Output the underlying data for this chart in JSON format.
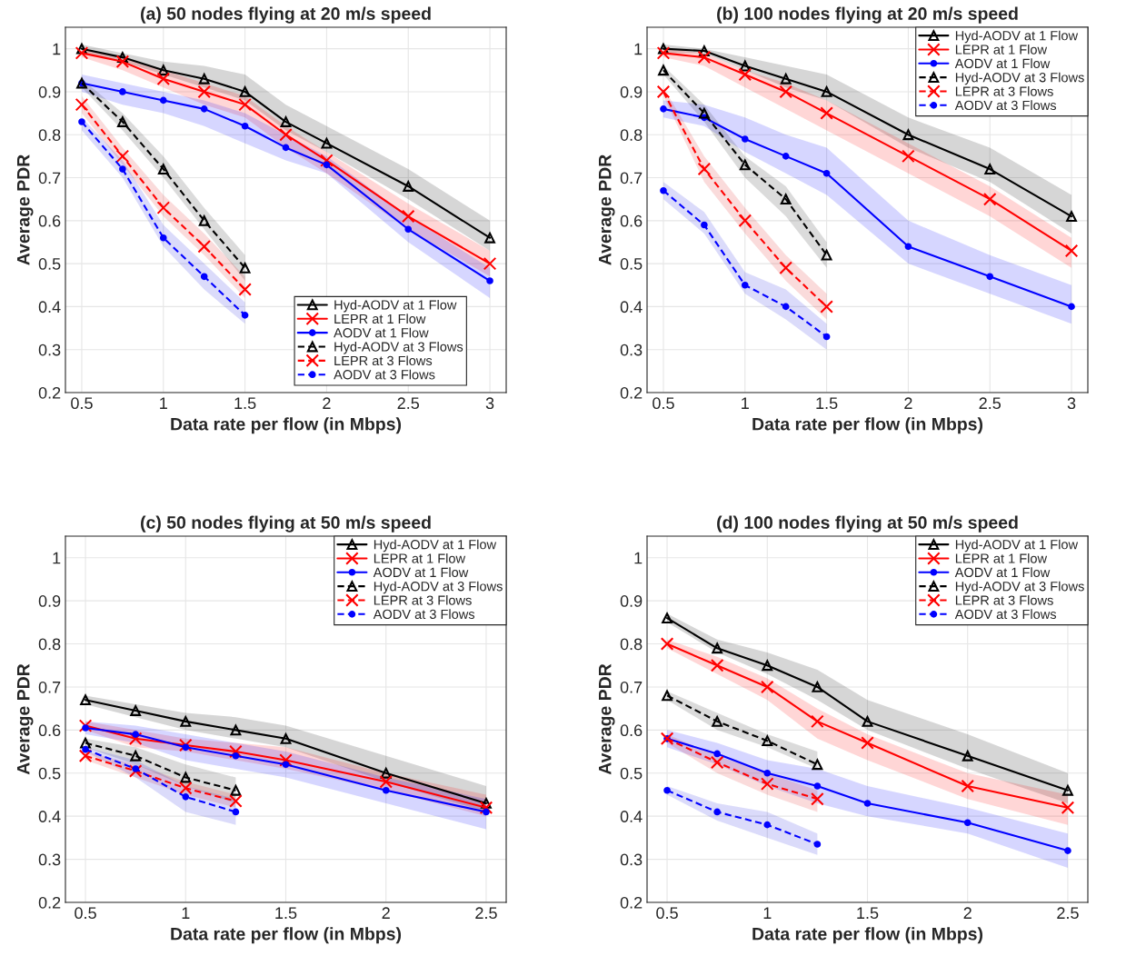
{
  "chart_data": [
    {
      "type": "line",
      "title": "(a) 50 nodes flying at 20 m/s speed",
      "xlabel": "Data rate per flow (in Mbps)",
      "ylabel": "Average PDR",
      "xlim": [
        0.4,
        3.1
      ],
      "ylim": [
        0.2,
        1.05
      ],
      "xticks": [
        0.5,
        1,
        1.5,
        2,
        2.5,
        3
      ],
      "yticks": [
        0.2,
        0.3,
        0.4,
        0.5,
        0.6,
        0.7,
        0.8,
        0.9,
        1
      ],
      "grid": true,
      "legend": "bottom right",
      "series": [
        {
          "name": "Hyd-AODV at 1 Flow",
          "color": "#000000",
          "marker": "triangle",
          "line_style": "solid",
          "x": [
            0.5,
            0.75,
            1,
            1.25,
            1.5,
            1.75,
            2,
            2.5,
            3
          ],
          "values": [
            1.0,
            0.98,
            0.95,
            0.93,
            0.9,
            0.83,
            0.78,
            0.68,
            0.56
          ],
          "upper": [
            1.01,
            0.99,
            0.97,
            0.96,
            0.94,
            0.87,
            0.82,
            0.72,
            0.6
          ],
          "lower": [
            0.99,
            0.97,
            0.94,
            0.91,
            0.88,
            0.81,
            0.76,
            0.65,
            0.53
          ]
        },
        {
          "name": "LEPR at 1 Flow",
          "color": "#ff0000",
          "marker": "cross",
          "line_style": "solid",
          "x": [
            0.5,
            0.75,
            1,
            1.25,
            1.5,
            1.75,
            2,
            2.5,
            3
          ],
          "values": [
            0.99,
            0.97,
            0.93,
            0.9,
            0.87,
            0.8,
            0.74,
            0.61,
            0.5
          ],
          "upper": [
            1.0,
            0.98,
            0.95,
            0.92,
            0.89,
            0.82,
            0.76,
            0.64,
            0.53
          ],
          "lower": [
            0.98,
            0.95,
            0.91,
            0.87,
            0.84,
            0.77,
            0.71,
            0.58,
            0.47
          ]
        },
        {
          "name": "AODV at 1 Flow",
          "color": "#0000ff",
          "marker": "circle",
          "line_style": "solid",
          "x": [
            0.5,
            0.75,
            1,
            1.25,
            1.5,
            1.75,
            2,
            2.5,
            3
          ],
          "values": [
            0.92,
            0.9,
            0.88,
            0.86,
            0.82,
            0.77,
            0.73,
            0.58,
            0.46
          ],
          "upper": [
            0.94,
            0.92,
            0.9,
            0.88,
            0.85,
            0.8,
            0.75,
            0.61,
            0.49
          ],
          "lower": [
            0.9,
            0.87,
            0.85,
            0.82,
            0.78,
            0.74,
            0.71,
            0.55,
            0.42
          ]
        },
        {
          "name": "Hyd-AODV at 3 Flows",
          "color": "#000000",
          "marker": "triangle",
          "line_style": "dashed",
          "x": [
            0.5,
            0.75,
            1,
            1.25,
            1.5
          ],
          "values": [
            0.92,
            0.83,
            0.72,
            0.6,
            0.49
          ],
          "upper": [
            0.93,
            0.85,
            0.75,
            0.63,
            0.52
          ],
          "lower": [
            0.91,
            0.81,
            0.7,
            0.58,
            0.46
          ]
        },
        {
          "name": "LEPR at 3 Flows",
          "color": "#ff0000",
          "marker": "cross",
          "line_style": "dashed",
          "x": [
            0.5,
            0.75,
            1,
            1.25,
            1.5
          ],
          "values": [
            0.87,
            0.75,
            0.63,
            0.54,
            0.44
          ],
          "upper": [
            0.89,
            0.77,
            0.66,
            0.57,
            0.47
          ],
          "lower": [
            0.85,
            0.73,
            0.61,
            0.52,
            0.42
          ]
        },
        {
          "name": "AODV at 3 Flows",
          "color": "#0000ff",
          "marker": "circle",
          "line_style": "dashed",
          "x": [
            0.5,
            0.75,
            1,
            1.25,
            1.5
          ],
          "values": [
            0.83,
            0.72,
            0.56,
            0.47,
            0.38
          ],
          "upper": [
            0.84,
            0.74,
            0.59,
            0.5,
            0.41
          ],
          "lower": [
            0.81,
            0.7,
            0.54,
            0.44,
            0.36
          ]
        }
      ]
    },
    {
      "type": "line",
      "title": "(b) 100 nodes flying at 20 m/s speed",
      "xlabel": "Data rate per flow (in Mbps)",
      "ylabel": "Average PDR",
      "xlim": [
        0.4,
        3.1
      ],
      "ylim": [
        0.2,
        1.05
      ],
      "xticks": [
        0.5,
        1,
        1.5,
        2,
        2.5,
        3
      ],
      "yticks": [
        0.2,
        0.3,
        0.4,
        0.5,
        0.6,
        0.7,
        0.8,
        0.9,
        1
      ],
      "grid": true,
      "legend": "top right",
      "series": [
        {
          "name": "Hyd-AODV at 1 Flow",
          "color": "#000000",
          "marker": "triangle",
          "line_style": "solid",
          "x": [
            0.5,
            0.75,
            1,
            1.25,
            1.5,
            2,
            2.5,
            3
          ],
          "values": [
            1.0,
            0.995,
            0.96,
            0.93,
            0.9,
            0.8,
            0.72,
            0.61
          ],
          "upper": [
            1.01,
            1.0,
            0.98,
            0.96,
            0.94,
            0.84,
            0.77,
            0.66
          ],
          "lower": [
            0.99,
            0.99,
            0.95,
            0.91,
            0.88,
            0.77,
            0.69,
            0.57
          ]
        },
        {
          "name": "LEPR at 1 Flow",
          "color": "#ff0000",
          "marker": "cross",
          "line_style": "solid",
          "x": [
            0.5,
            0.75,
            1,
            1.25,
            1.5,
            2,
            2.5,
            3
          ],
          "values": [
            0.99,
            0.98,
            0.94,
            0.9,
            0.85,
            0.75,
            0.65,
            0.53
          ],
          "upper": [
            1.0,
            0.99,
            0.95,
            0.92,
            0.88,
            0.78,
            0.68,
            0.56
          ],
          "lower": [
            0.98,
            0.96,
            0.91,
            0.86,
            0.81,
            0.71,
            0.61,
            0.49
          ]
        },
        {
          "name": "AODV at 1 Flow",
          "color": "#0000ff",
          "marker": "circle",
          "line_style": "solid",
          "x": [
            0.5,
            0.75,
            1,
            1.25,
            1.5,
            2,
            2.5,
            3
          ],
          "values": [
            0.86,
            0.84,
            0.79,
            0.75,
            0.71,
            0.54,
            0.47,
            0.4
          ],
          "upper": [
            0.88,
            0.87,
            0.84,
            0.8,
            0.77,
            0.6,
            0.52,
            0.45
          ],
          "lower": [
            0.84,
            0.82,
            0.76,
            0.71,
            0.66,
            0.5,
            0.43,
            0.36
          ]
        },
        {
          "name": "Hyd-AODV at 3 Flows",
          "color": "#000000",
          "marker": "triangle",
          "line_style": "dashed",
          "x": [
            0.5,
            0.75,
            1,
            1.25,
            1.5
          ],
          "values": [
            0.95,
            0.85,
            0.73,
            0.65,
            0.52
          ],
          "upper": [
            0.96,
            0.87,
            0.75,
            0.68,
            0.55
          ],
          "lower": [
            0.94,
            0.83,
            0.7,
            0.61,
            0.49
          ]
        },
        {
          "name": "LEPR at 3 Flows",
          "color": "#ff0000",
          "marker": "cross",
          "line_style": "dashed",
          "x": [
            0.5,
            0.75,
            1,
            1.25,
            1.5
          ],
          "values": [
            0.9,
            0.72,
            0.6,
            0.49,
            0.4
          ],
          "upper": [
            0.91,
            0.75,
            0.63,
            0.52,
            0.43
          ],
          "lower": [
            0.89,
            0.69,
            0.57,
            0.46,
            0.37
          ]
        },
        {
          "name": "AODV at 3 Flows",
          "color": "#0000ff",
          "marker": "circle",
          "line_style": "dashed",
          "x": [
            0.5,
            0.75,
            1,
            1.25,
            1.5
          ],
          "values": [
            0.67,
            0.59,
            0.45,
            0.4,
            0.33
          ],
          "upper": [
            0.69,
            0.62,
            0.48,
            0.44,
            0.36
          ],
          "lower": [
            0.65,
            0.57,
            0.43,
            0.37,
            0.3
          ]
        }
      ]
    },
    {
      "type": "line",
      "title": "(c) 50 nodes flying at 50 m/s speed",
      "xlabel": "Data rate per flow (in Mbps)",
      "ylabel": "Average PDR",
      "xlim": [
        0.4,
        2.6
      ],
      "ylim": [
        0.2,
        1.05
      ],
      "xticks": [
        0.5,
        1,
        1.5,
        2,
        2.5
      ],
      "yticks": [
        0.2,
        0.3,
        0.4,
        0.5,
        0.6,
        0.7,
        0.8,
        0.9,
        1
      ],
      "grid": true,
      "legend": "top right",
      "series": [
        {
          "name": "Hyd-AODV at 1 Flow",
          "color": "#000000",
          "marker": "triangle",
          "line_style": "solid",
          "x": [
            0.5,
            0.75,
            1,
            1.25,
            1.5,
            2,
            2.5
          ],
          "values": [
            0.67,
            0.645,
            0.62,
            0.6,
            0.58,
            0.5,
            0.43
          ],
          "upper": [
            0.68,
            0.66,
            0.64,
            0.63,
            0.61,
            0.54,
            0.47
          ],
          "lower": [
            0.66,
            0.63,
            0.6,
            0.58,
            0.56,
            0.48,
            0.41
          ]
        },
        {
          "name": "LEPR at 1 Flow",
          "color": "#ff0000",
          "marker": "cross",
          "line_style": "solid",
          "x": [
            0.5,
            0.75,
            1,
            1.25,
            1.5,
            2,
            2.5
          ],
          "values": [
            0.61,
            0.58,
            0.565,
            0.55,
            0.53,
            0.48,
            0.42
          ],
          "upper": [
            0.62,
            0.6,
            0.58,
            0.57,
            0.56,
            0.5,
            0.45
          ],
          "lower": [
            0.6,
            0.56,
            0.55,
            0.53,
            0.51,
            0.46,
            0.4
          ]
        },
        {
          "name": "AODV at 1 Flow",
          "color": "#0000ff",
          "marker": "circle",
          "line_style": "solid",
          "x": [
            0.5,
            0.75,
            1,
            1.25,
            1.5,
            2,
            2.5
          ],
          "values": [
            0.605,
            0.59,
            0.56,
            0.54,
            0.52,
            0.46,
            0.41
          ],
          "upper": [
            0.62,
            0.61,
            0.59,
            0.57,
            0.55,
            0.49,
            0.44
          ],
          "lower": [
            0.59,
            0.57,
            0.53,
            0.51,
            0.49,
            0.43,
            0.37
          ]
        },
        {
          "name": "Hyd-AODV at 3 Flows",
          "color": "#000000",
          "marker": "triangle",
          "line_style": "dashed",
          "x": [
            0.5,
            0.75,
            1,
            1.25
          ],
          "values": [
            0.57,
            0.54,
            0.49,
            0.46
          ],
          "upper": [
            0.58,
            0.56,
            0.52,
            0.49
          ],
          "lower": [
            0.56,
            0.52,
            0.47,
            0.43
          ]
        },
        {
          "name": "LEPR at 3 Flows",
          "color": "#ff0000",
          "marker": "cross",
          "line_style": "dashed",
          "x": [
            0.5,
            0.75,
            1,
            1.25
          ],
          "values": [
            0.54,
            0.505,
            0.465,
            0.435
          ],
          "upper": [
            0.55,
            0.52,
            0.48,
            0.45
          ],
          "lower": [
            0.53,
            0.49,
            0.45,
            0.42
          ]
        },
        {
          "name": "AODV at 3 Flows",
          "color": "#0000ff",
          "marker": "circle",
          "line_style": "dashed",
          "x": [
            0.5,
            0.75,
            1,
            1.25
          ],
          "values": [
            0.555,
            0.51,
            0.445,
            0.41
          ],
          "upper": [
            0.56,
            0.53,
            0.47,
            0.44
          ],
          "lower": [
            0.55,
            0.49,
            0.41,
            0.38
          ]
        }
      ]
    },
    {
      "type": "line",
      "title": "(d) 100 nodes flying at 50 m/s speed",
      "xlabel": "Data rate per flow (in Mbps)",
      "ylabel": "Average PDR",
      "xlim": [
        0.4,
        2.6
      ],
      "ylim": [
        0.2,
        1.05
      ],
      "xticks": [
        0.5,
        1,
        1.5,
        2,
        2.5
      ],
      "yticks": [
        0.2,
        0.3,
        0.4,
        0.5,
        0.6,
        0.7,
        0.8,
        0.9,
        1
      ],
      "grid": true,
      "legend": "top right",
      "series": [
        {
          "name": "Hyd-AODV at 1 Flow",
          "color": "#000000",
          "marker": "triangle",
          "line_style": "solid",
          "x": [
            0.5,
            0.75,
            1,
            1.25,
            1.5,
            2,
            2.5
          ],
          "values": [
            0.86,
            0.79,
            0.75,
            0.7,
            0.62,
            0.54,
            0.46
          ],
          "upper": [
            0.87,
            0.81,
            0.78,
            0.74,
            0.67,
            0.59,
            0.5
          ],
          "lower": [
            0.85,
            0.78,
            0.73,
            0.67,
            0.6,
            0.51,
            0.43
          ]
        },
        {
          "name": "LEPR at 1 Flow",
          "color": "#ff0000",
          "marker": "cross",
          "line_style": "solid",
          "x": [
            0.5,
            0.75,
            1,
            1.25,
            1.5,
            2,
            2.5
          ],
          "values": [
            0.8,
            0.75,
            0.7,
            0.62,
            0.57,
            0.47,
            0.42
          ],
          "upper": [
            0.81,
            0.77,
            0.72,
            0.65,
            0.59,
            0.5,
            0.45
          ],
          "lower": [
            0.79,
            0.73,
            0.67,
            0.58,
            0.53,
            0.44,
            0.38
          ]
        },
        {
          "name": "AODV at 1 Flow",
          "color": "#0000ff",
          "marker": "circle",
          "line_style": "solid",
          "x": [
            0.5,
            0.75,
            1,
            1.25,
            1.5,
            2,
            2.5
          ],
          "values": [
            0.58,
            0.545,
            0.5,
            0.47,
            0.43,
            0.385,
            0.32
          ],
          "upper": [
            0.6,
            0.57,
            0.53,
            0.51,
            0.47,
            0.42,
            0.36
          ],
          "lower": [
            0.56,
            0.52,
            0.47,
            0.43,
            0.4,
            0.36,
            0.28
          ]
        },
        {
          "name": "Hyd-AODV at 3 Flows",
          "color": "#000000",
          "marker": "triangle",
          "line_style": "dashed",
          "x": [
            0.5,
            0.75,
            1,
            1.25
          ],
          "values": [
            0.68,
            0.62,
            0.575,
            0.52
          ],
          "upper": [
            0.69,
            0.64,
            0.59,
            0.55
          ],
          "lower": [
            0.67,
            0.6,
            0.56,
            0.51
          ]
        },
        {
          "name": "LEPR at 3 Flows",
          "color": "#ff0000",
          "marker": "cross",
          "line_style": "dashed",
          "x": [
            0.5,
            0.75,
            1,
            1.25
          ],
          "values": [
            0.58,
            0.525,
            0.475,
            0.44
          ],
          "upper": [
            0.59,
            0.54,
            0.5,
            0.46
          ],
          "lower": [
            0.57,
            0.5,
            0.45,
            0.41
          ]
        },
        {
          "name": "AODV at 3 Flows",
          "color": "#0000ff",
          "marker": "circle",
          "line_style": "dashed",
          "x": [
            0.5,
            0.75,
            1,
            1.25
          ],
          "values": [
            0.46,
            0.41,
            0.38,
            0.335
          ],
          "upper": [
            0.47,
            0.43,
            0.41,
            0.36
          ],
          "lower": [
            0.45,
            0.39,
            0.35,
            0.31
          ]
        }
      ]
    }
  ]
}
